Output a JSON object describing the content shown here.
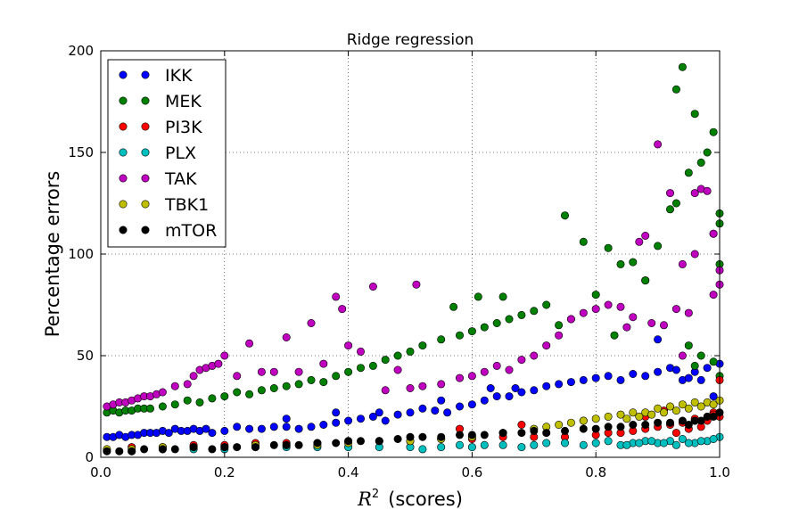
{
  "chart_data": {
    "type": "scatter",
    "title": "Ridge regression",
    "xlabel_var": "R",
    "xlabel_sup": "2",
    "xlabel_rest": "(scores)",
    "ylabel": "Percentage errors",
    "xlim": [
      0,
      1
    ],
    "ylim": [
      0,
      200
    ],
    "xticks": [
      0.0,
      0.2,
      0.4,
      0.6,
      0.8,
      1.0
    ],
    "xtick_labels": [
      "0.0",
      "0.2",
      "0.4",
      "0.6",
      "0.8",
      "1.0"
    ],
    "yticks": [
      0,
      50,
      100,
      150,
      200
    ],
    "ytick_labels": [
      "0",
      "50",
      "100",
      "150",
      "200"
    ],
    "grid": true,
    "legend_position": "upper-left",
    "series": [
      {
        "name": "IKK",
        "color": "#0000ff",
        "x": [
          0.01,
          0.02,
          0.03,
          0.04,
          0.05,
          0.06,
          0.07,
          0.08,
          0.09,
          0.1,
          0.11,
          0.12,
          0.13,
          0.14,
          0.15,
          0.16,
          0.17,
          0.18,
          0.2,
          0.22,
          0.24,
          0.26,
          0.28,
          0.3,
          0.32,
          0.34,
          0.36,
          0.38,
          0.4,
          0.42,
          0.44,
          0.46,
          0.48,
          0.5,
          0.52,
          0.54,
          0.56,
          0.58,
          0.6,
          0.62,
          0.64,
          0.66,
          0.68,
          0.7,
          0.72,
          0.74,
          0.76,
          0.78,
          0.8,
          0.82,
          0.84,
          0.86,
          0.88,
          0.9,
          0.92,
          0.94,
          0.96,
          0.98,
          0.99,
          1.0,
          0.63,
          0.67,
          0.55,
          0.45,
          0.38,
          0.3,
          0.9,
          0.95,
          0.97,
          0.93
        ],
        "y": [
          10,
          10,
          11,
          10,
          11,
          11,
          12,
          12,
          12,
          13,
          12,
          14,
          13,
          13,
          14,
          13,
          14,
          12,
          13,
          15,
          14,
          14,
          15,
          15,
          14,
          15,
          16,
          17,
          18,
          19,
          20,
          18,
          21,
          22,
          24,
          23,
          22,
          25,
          26,
          28,
          30,
          30,
          32,
          33,
          35,
          36,
          37,
          38,
          39,
          40,
          38,
          41,
          40,
          42,
          44,
          38,
          42,
          44,
          30,
          46,
          34,
          34,
          28,
          22,
          22,
          19,
          58,
          39,
          38,
          43
        ]
      },
      {
        "name": "MEK",
        "color": "#008000",
        "x": [
          0.01,
          0.02,
          0.03,
          0.04,
          0.05,
          0.06,
          0.07,
          0.08,
          0.1,
          0.12,
          0.14,
          0.16,
          0.18,
          0.2,
          0.22,
          0.24,
          0.26,
          0.28,
          0.3,
          0.32,
          0.34,
          0.36,
          0.38,
          0.4,
          0.42,
          0.44,
          0.46,
          0.48,
          0.5,
          0.52,
          0.55,
          0.58,
          0.6,
          0.62,
          0.64,
          0.66,
          0.68,
          0.7,
          0.72,
          0.75,
          0.76,
          0.78,
          0.8,
          0.82,
          0.84,
          0.86,
          0.88,
          0.9,
          0.92,
          0.93,
          0.94,
          0.95,
          0.96,
          0.97,
          0.98,
          0.99,
          1.0,
          1.0,
          0.99,
          1.0,
          0.61,
          0.65,
          0.57,
          0.74,
          0.83,
          0.95,
          0.97,
          0.99,
          0.96,
          1.0,
          0.88,
          0.93
        ],
        "y": [
          22,
          23,
          22,
          23,
          23,
          24,
          24,
          24,
          25,
          26,
          28,
          27,
          29,
          30,
          32,
          31,
          33,
          34,
          35,
          36,
          38,
          37,
          40,
          42,
          44,
          45,
          48,
          50,
          52,
          55,
          58,
          60,
          62,
          64,
          66,
          68,
          70,
          72,
          75,
          119,
          68,
          106,
          80,
          103,
          95,
          96,
          87,
          104,
          122,
          181,
          192,
          140,
          169,
          145,
          150,
          160,
          95,
          120,
          110,
          115,
          79,
          79,
          74,
          65,
          60,
          55,
          50,
          47,
          45,
          40,
          87,
          125
        ]
      },
      {
        "name": "PI3K",
        "color": "#ff0000",
        "x": [
          0.05,
          0.1,
          0.15,
          0.2,
          0.25,
          0.3,
          0.35,
          0.4,
          0.45,
          0.5,
          0.55,
          0.6,
          0.65,
          0.7,
          0.75,
          0.8,
          0.82,
          0.84,
          0.86,
          0.88,
          0.9,
          0.92,
          0.94,
          0.96,
          0.98,
          1.0,
          0.99,
          0.97,
          0.95,
          0.93,
          0.58,
          0.68,
          0.78,
          0.88,
          0.91,
          0.96,
          0.99,
          1.0
        ],
        "y": [
          5,
          5,
          6,
          6,
          7,
          7,
          7,
          8,
          8,
          8,
          9,
          9,
          10,
          10,
          10,
          11,
          12,
          12,
          13,
          14,
          15,
          16,
          17,
          18,
          18,
          20,
          22,
          15,
          14,
          12,
          14,
          16,
          18,
          20,
          23,
          19,
          21,
          38
        ]
      },
      {
        "name": "PLX",
        "color": "#00bfbf",
        "x": [
          0.05,
          0.1,
          0.15,
          0.2,
          0.25,
          0.3,
          0.35,
          0.4,
          0.45,
          0.5,
          0.52,
          0.55,
          0.58,
          0.6,
          0.62,
          0.65,
          0.68,
          0.7,
          0.72,
          0.75,
          0.78,
          0.8,
          0.82,
          0.84,
          0.86,
          0.88,
          0.9,
          0.92,
          0.94,
          0.96,
          0.98,
          1.0,
          0.99,
          0.97,
          0.95,
          0.93,
          0.91,
          0.89,
          0.87,
          0.85
        ],
        "y": [
          3,
          4,
          4,
          4,
          5,
          5,
          5,
          5,
          5,
          5,
          4,
          5,
          6,
          5,
          6,
          6,
          5,
          6,
          7,
          7,
          6,
          7,
          8,
          6,
          7,
          8,
          7,
          8,
          9,
          7,
          8,
          10,
          9,
          8,
          7,
          6,
          7,
          8,
          7,
          6
        ]
      },
      {
        "name": "TAK",
        "color": "#bf00bf",
        "x": [
          0.01,
          0.02,
          0.03,
          0.04,
          0.05,
          0.06,
          0.07,
          0.08,
          0.09,
          0.1,
          0.12,
          0.14,
          0.15,
          0.16,
          0.17,
          0.18,
          0.19,
          0.2,
          0.22,
          0.24,
          0.26,
          0.28,
          0.3,
          0.32,
          0.34,
          0.36,
          0.38,
          0.39,
          0.4,
          0.42,
          0.44,
          0.46,
          0.48,
          0.5,
          0.51,
          0.52,
          0.55,
          0.58,
          0.6,
          0.62,
          0.64,
          0.66,
          0.68,
          0.7,
          0.72,
          0.74,
          0.76,
          0.78,
          0.8,
          0.82,
          0.84,
          0.86,
          0.88,
          0.9,
          0.92,
          0.94,
          0.96,
          0.97,
          0.98,
          0.99,
          1.0,
          1.0,
          0.99,
          0.95,
          0.93,
          0.87,
          0.91,
          0.89,
          0.85,
          0.94,
          0.96
        ],
        "y": [
          25,
          26,
          27,
          27,
          28,
          29,
          30,
          30,
          31,
          32,
          35,
          36,
          40,
          43,
          44,
          45,
          46,
          50,
          40,
          56,
          42,
          42,
          59,
          42,
          66,
          46,
          79,
          73,
          55,
          52,
          84,
          33,
          43,
          34,
          85,
          35,
          36,
          39,
          40,
          42,
          45,
          43,
          48,
          50,
          55,
          60,
          68,
          71,
          73,
          75,
          74,
          69,
          109,
          154,
          130,
          95,
          130,
          132,
          131,
          110,
          92,
          85,
          80,
          71,
          73,
          106,
          65,
          66,
          64,
          50,
          100
        ]
      },
      {
        "name": "TBK1",
        "color": "#bfbf00",
        "x": [
          0.01,
          0.05,
          0.1,
          0.15,
          0.2,
          0.25,
          0.3,
          0.35,
          0.4,
          0.45,
          0.5,
          0.55,
          0.6,
          0.65,
          0.7,
          0.72,
          0.74,
          0.76,
          0.78,
          0.8,
          0.82,
          0.84,
          0.86,
          0.88,
          0.9,
          0.92,
          0.94,
          0.96,
          0.98,
          1.0,
          0.99,
          0.97,
          0.95,
          0.93,
          0.91,
          0.89,
          0.87,
          0.85
        ],
        "y": [
          4,
          4,
          5,
          5,
          5,
          6,
          6,
          6,
          7,
          8,
          8,
          9,
          10,
          12,
          14,
          15,
          16,
          17,
          18,
          19,
          20,
          21,
          22,
          22,
          24,
          25,
          26,
          27,
          27,
          28,
          26,
          25,
          24,
          23,
          22,
          21,
          20,
          19
        ]
      },
      {
        "name": "mTOR",
        "color": "#000000",
        "x": [
          0.01,
          0.03,
          0.05,
          0.07,
          0.1,
          0.12,
          0.15,
          0.18,
          0.2,
          0.22,
          0.25,
          0.28,
          0.3,
          0.32,
          0.35,
          0.38,
          0.4,
          0.42,
          0.45,
          0.48,
          0.5,
          0.52,
          0.55,
          0.58,
          0.6,
          0.62,
          0.65,
          0.68,
          0.7,
          0.72,
          0.75,
          0.78,
          0.8,
          0.82,
          0.84,
          0.86,
          0.88,
          0.9,
          0.92,
          0.94,
          0.96,
          0.98,
          1.0,
          0.99,
          0.97,
          0.95
        ],
        "y": [
          3,
          3,
          3,
          4,
          4,
          4,
          5,
          4,
          5,
          5,
          5,
          6,
          6,
          6,
          7,
          7,
          8,
          8,
          8,
          9,
          10,
          10,
          10,
          11,
          11,
          11,
          12,
          12,
          13,
          12,
          13,
          14,
          14,
          15,
          15,
          16,
          16,
          17,
          17,
          18,
          18,
          20,
          22,
          20,
          18,
          16
        ]
      }
    ]
  }
}
